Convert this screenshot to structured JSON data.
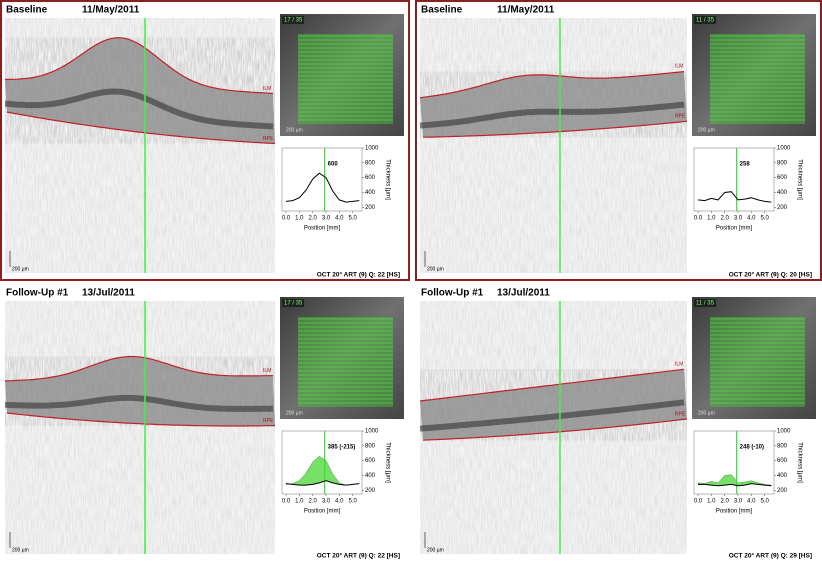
{
  "panels": [
    {
      "label": "Baseline",
      "date": "11/May/2011",
      "ilm_label": "ILM",
      "rpe_label": "RPE",
      "scale_label": "200 µm",
      "scan_label": "17 / 35",
      "footer": "OCT 20° ART (9) Q: 22 [HS]",
      "border_color": "#8b2020",
      "chart": {
        "type": "line",
        "annotation": "600",
        "x_label": "Position [mm]",
        "y_label": "Thickness [µm]",
        "x": [
          0,
          0.5,
          1,
          1.5,
          2,
          2.5,
          3,
          3.5,
          4,
          4.5,
          5,
          5.5
        ],
        "values": [
          280,
          290,
          330,
          430,
          580,
          660,
          600,
          420,
          300,
          270,
          280,
          290
        ],
        "marker_x": 2.9,
        "color": "#000000",
        "marker_color": "#33dd33",
        "xlim": [
          -0.3,
          5.7
        ],
        "ylim": [
          150,
          1000
        ],
        "xticks": [
          {
            "value": 0,
            "label": "0.0"
          },
          {
            "value": 1,
            "label": "1.0"
          },
          {
            "value": 2,
            "label": "2.0"
          },
          {
            "value": 3,
            "label": "3.0"
          },
          {
            "value": 4,
            "label": "4.0"
          },
          {
            "value": 5,
            "label": "5.0"
          }
        ],
        "yticks": [
          200,
          400,
          600,
          800,
          1000
        ]
      }
    },
    {
      "label": "Baseline",
      "date": "11/May/2011",
      "ilm_label": "ILM",
      "rpe_label": "RPE",
      "scale_label": "200 µm",
      "scan_label": "11 / 35",
      "footer": "OCT 20° ART (9) Q: 20 [HS]",
      "border_color": "#8b2020",
      "chart": {
        "type": "line",
        "annotation": "258",
        "x_label": "Position [mm]",
        "y_label": "Thickness [µm]",
        "x": [
          0,
          0.5,
          1,
          1.5,
          2,
          2.5,
          3,
          3.5,
          4,
          4.5,
          5,
          5.5
        ],
        "values": [
          300,
          290,
          320,
          300,
          400,
          410,
          300,
          310,
          330,
          300,
          280,
          270
        ],
        "marker_x": 2.9,
        "color": "#000000",
        "marker_color": "#33dd33",
        "xlim": [
          -0.3,
          5.7
        ],
        "ylim": [
          150,
          1000
        ],
        "xticks": [
          {
            "value": 0,
            "label": "0.0"
          },
          {
            "value": 1,
            "label": "1.0"
          },
          {
            "value": 2,
            "label": "2.0"
          },
          {
            "value": 3,
            "label": "3.0"
          },
          {
            "value": 4,
            "label": "4.0"
          },
          {
            "value": 5,
            "label": "5.0"
          }
        ],
        "yticks": [
          200,
          400,
          600,
          800,
          1000
        ]
      }
    },
    {
      "label": "Follow-Up #1",
      "date": "13/Jul/2011",
      "ilm_label": "ILM",
      "rpe_label": "RPE",
      "scale_label": "200 µm",
      "scan_label": "17 / 35",
      "footer": "OCT 20° ART (9) Q: 22 [HS]",
      "chart": {
        "type": "line",
        "annotation": "385 (-215)",
        "x_label": "Position [mm]",
        "y_label": "Thickness [µm]",
        "x": [
          0,
          0.5,
          1,
          1.5,
          2,
          2.5,
          3,
          3.5,
          4,
          4.5,
          5,
          5.5
        ],
        "values": [
          290,
          280,
          270,
          270,
          280,
          300,
          330,
          300,
          280,
          270,
          280,
          290
        ],
        "baseline_values": [
          280,
          290,
          330,
          430,
          580,
          660,
          600,
          420,
          300,
          270,
          280,
          290
        ],
        "fill_color": "#77e066",
        "marker_x": 2.9,
        "color": "#000000",
        "marker_color": "#33dd33",
        "xlim": [
          -0.3,
          5.7
        ],
        "ylim": [
          150,
          1000
        ],
        "xticks": [
          {
            "value": 0,
            "label": "0.0"
          },
          {
            "value": 1,
            "label": "1.0"
          },
          {
            "value": 2,
            "label": "2.0"
          },
          {
            "value": 3,
            "label": "3.0"
          },
          {
            "value": 4,
            "label": "4.0"
          },
          {
            "value": 5,
            "label": "5.0"
          }
        ],
        "yticks": [
          200,
          400,
          600,
          800,
          1000
        ]
      }
    },
    {
      "label": "Follow-Up #1",
      "date": "13/Jul/2011",
      "ilm_label": "ILM",
      "rpe_label": "RPE",
      "scale_label": "200 µm",
      "scan_label": "11 / 35",
      "footer": "OCT 20° ART (9) Q: 29 [HS]",
      "chart": {
        "type": "line",
        "annotation": "248 (-10)",
        "x_label": "Position [mm]",
        "y_label": "Thickness [µm]",
        "x": [
          0,
          0.5,
          1,
          1.5,
          2,
          2.5,
          3,
          3.5,
          4,
          4.5,
          5,
          5.5
        ],
        "values": [
          280,
          280,
          270,
          260,
          270,
          280,
          260,
          270,
          290,
          280,
          270,
          260
        ],
        "baseline_values": [
          300,
          290,
          320,
          300,
          400,
          410,
          300,
          310,
          330,
          300,
          280,
          270
        ],
        "fill_color": "#77e066",
        "marker_x": 2.9,
        "color": "#000000",
        "marker_color": "#33dd33",
        "xlim": [
          -0.3,
          5.7
        ],
        "ylim": [
          150,
          1000
        ],
        "xticks": [
          {
            "value": 0,
            "label": "0.0"
          },
          {
            "value": 1,
            "label": "1.0"
          },
          {
            "value": 2,
            "label": "2.0"
          },
          {
            "value": 3,
            "label": "3.0"
          },
          {
            "value": 4,
            "label": "4.0"
          },
          {
            "value": 5,
            "label": "5.0"
          }
        ],
        "yticks": [
          200,
          400,
          600,
          800,
          1000
        ]
      }
    }
  ]
}
